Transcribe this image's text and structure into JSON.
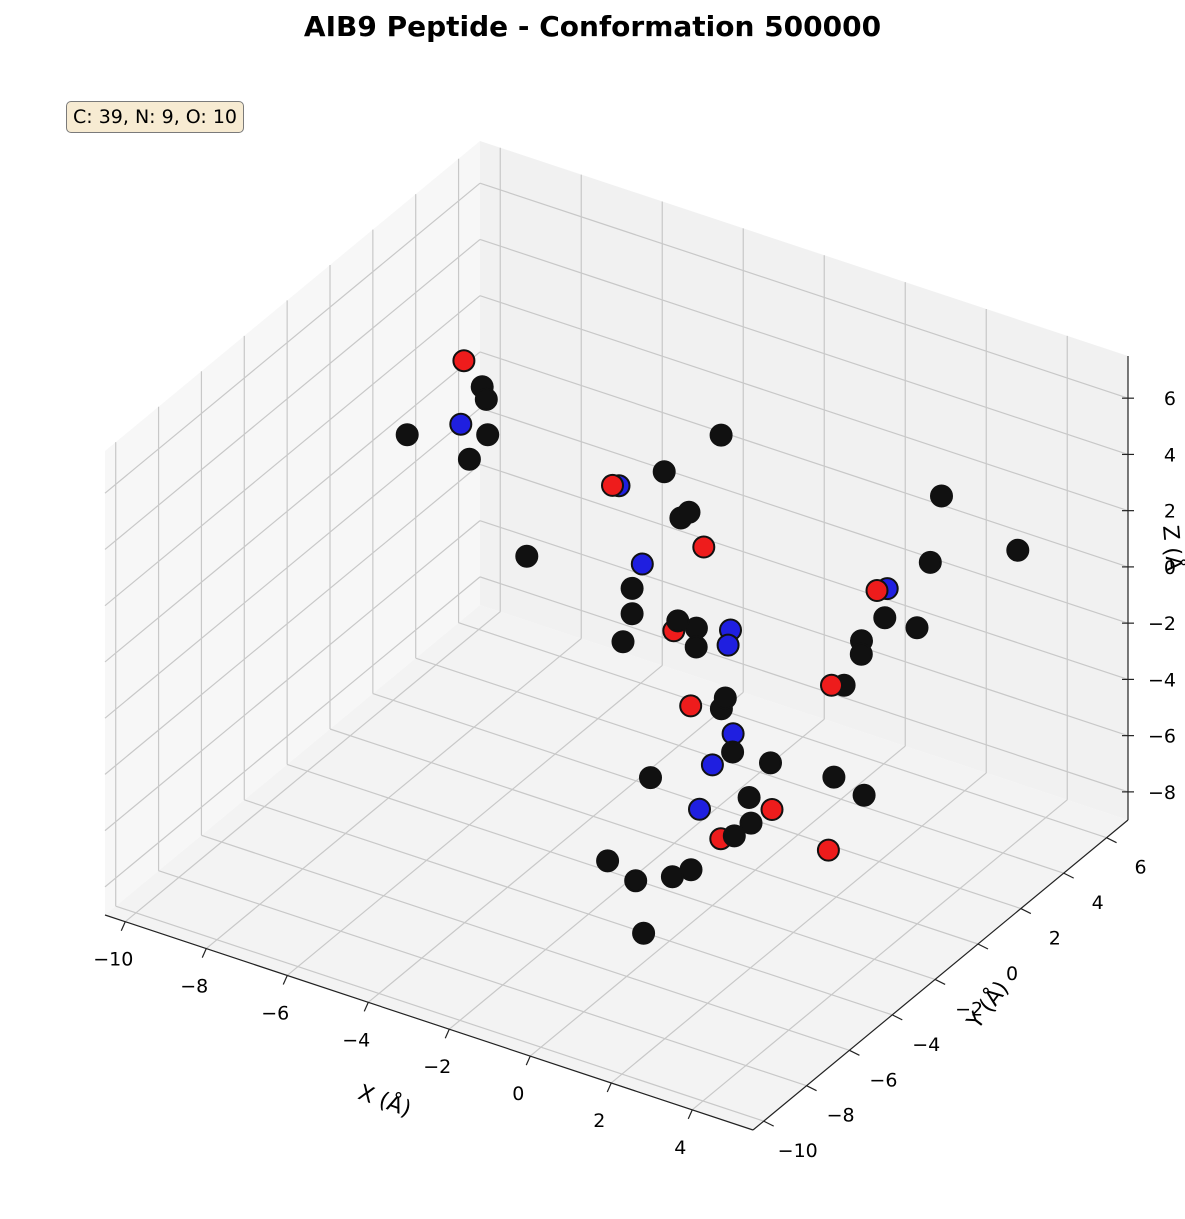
{
  "chart_data": {
    "type": "scatter",
    "title": "AIB9 Peptide - Conformation 500000",
    "annotation": "C: 39, N: 9, O: 10",
    "xlabel": "X (Å)",
    "ylabel": "Y (Å)",
    "zlabel": "Z (Å)",
    "zlabel_visible": "Z (Å",
    "xlim": [
      -10.5,
      5.5
    ],
    "ylim": [
      -10.5,
      7
    ],
    "zlim": [
      -9,
      7.5
    ],
    "xticks": [
      -10,
      -8,
      -6,
      -4,
      -2,
      0,
      2,
      4
    ],
    "yticks": [
      -10,
      -8,
      -6,
      -4,
      -2,
      0,
      2,
      4,
      6
    ],
    "zticks": [
      -8,
      -6,
      -4,
      -2,
      0,
      2,
      4,
      6
    ],
    "grid": true,
    "colors": {
      "C": "#111111",
      "N": "#1f1fe0",
      "O": "#ee1c1c",
      "edge": "#111111"
    },
    "series": [
      {
        "name": "C",
        "color": "#111111",
        "points": [
          [
            -7.8,
            2.0,
            3.2
          ],
          [
            -7.7,
            2.0,
            2.8
          ],
          [
            -8.7,
            0.2,
            2.2
          ],
          [
            -7.4,
            1.5,
            2.0
          ],
          [
            -7.8,
            1.4,
            1.0
          ],
          [
            -2.8,
            3.7,
            2.8
          ],
          [
            -3.2,
            1.8,
            2.5
          ],
          [
            -2.8,
            2.2,
            1.0
          ],
          [
            -3.0,
            2.2,
            0.7
          ],
          [
            -4.9,
            -1.4,
            0.7
          ],
          [
            -3.2,
            0.3,
            -0.7
          ],
          [
            -3.2,
            0.3,
            -1.6
          ],
          [
            -3.0,
            -0.5,
            -2.0
          ],
          [
            -1.7,
            -0.4,
            -0.7
          ],
          [
            -1.4,
            -0.1,
            -1.0
          ],
          [
            -1.3,
            -0.3,
            -1.5
          ],
          [
            2.8,
            3.4,
            3.5
          ],
          [
            3.0,
            2.5,
            1.8
          ],
          [
            5.0,
            2.8,
            3.0
          ],
          [
            3.2,
            1.5,
            0.2
          ],
          [
            2.3,
            1.7,
            0.0
          ],
          [
            2.2,
            0.8,
            -0.3
          ],
          [
            2.3,
            0.6,
            -0.6
          ],
          [
            2.3,
            -0.2,
            -1.2
          ],
          [
            0.0,
            -1.4,
            -2.0
          ],
          [
            -0.2,
            -1.2,
            -2.6
          ],
          [
            1.7,
            -2.5,
            -2.8
          ],
          [
            3.0,
            -2.0,
            -3.0
          ],
          [
            0.5,
            -2.0,
            -3.3
          ],
          [
            1.7,
            -3.5,
            -3.4
          ],
          [
            3.8,
            -2.1,
            -3.2
          ],
          [
            -1.0,
            -3.0,
            -4.3
          ],
          [
            1.8,
            -3.6,
            -4.2
          ],
          [
            1.6,
            -4.0,
            -4.5
          ],
          [
            -1.0,
            -5.0,
            -6.0
          ],
          [
            0.6,
            -5.0,
            -5.8
          ],
          [
            0.9,
            -4.7,
            -5.6
          ],
          [
            -0.2,
            -5.2,
            -6.2
          ],
          [
            0.1,
            -5.4,
            -7.8
          ]
        ]
      },
      {
        "name": "N",
        "color": "#1f1fe0",
        "points": [
          [
            -7.8,
            1.0,
            2.5
          ],
          [
            -4.0,
            1.2,
            2.0
          ],
          [
            -3.0,
            0.4,
            0.2
          ],
          [
            -0.4,
            -0.4,
            -0.4
          ],
          [
            -0.3,
            -0.7,
            -0.7
          ],
          [
            0.3,
            -1.6,
            -3.0
          ],
          [
            0.0,
            -2.0,
            -4.0
          ],
          [
            0.0,
            -2.6,
            -5.2
          ],
          [
            2.2,
            2.0,
            0.8
          ]
        ]
      },
      {
        "name": "O",
        "color": "#ee1c1c",
        "points": [
          [
            -8.2,
            1.9,
            4.0
          ],
          [
            -4.0,
            0.9,
            2.2
          ],
          [
            -1.8,
            1.0,
            1.0
          ],
          [
            -1.8,
            -0.4,
            -1.1
          ],
          [
            -0.8,
            -1.5,
            -2.6
          ],
          [
            2.0,
            1.9,
            0.7
          ],
          [
            2.2,
            -0.6,
            -1.0
          ],
          [
            2.0,
            -3.0,
            -4.0
          ],
          [
            3.5,
            -3.2,
            -4.6
          ],
          [
            1.0,
            -3.5,
            -5.2
          ]
        ]
      }
    ]
  }
}
